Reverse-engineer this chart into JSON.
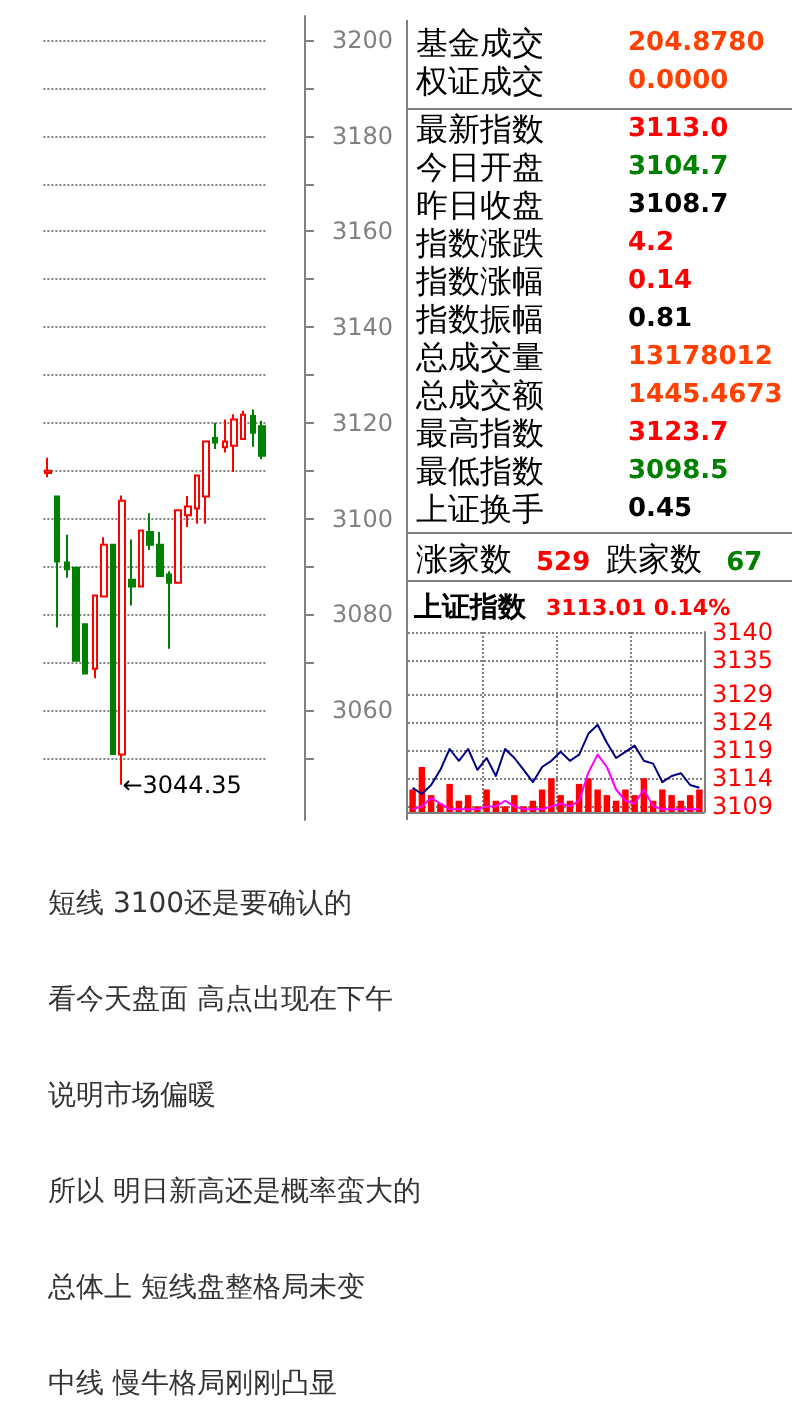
{
  "chart_data": [
    {
      "type": "candlestick",
      "categories": [
        null,
        null,
        null,
        null,
        null,
        null,
        null,
        null,
        null,
        null,
        null,
        null,
        null,
        null,
        null,
        null,
        null,
        null,
        null,
        null,
        null,
        null,
        null,
        null
      ],
      "ohlc": [
        [
          3109.5,
          3112.7,
          3108.6,
          3110
        ],
        [
          3104.6,
          3104.6,
          3077.2,
          3091.0
        ],
        [
          3090.8,
          3096.6,
          3087.6,
          3089.4
        ],
        [
          3089.7,
          3089.7,
          3070.3,
          3070.3
        ],
        [
          3077.9,
          3077.9,
          3067.6,
          3067.6
        ],
        [
          3068.6,
          3084.1,
          3066.6,
          3083.9
        ],
        [
          3083.7,
          3096.1,
          3083.7,
          3094.5
        ],
        [
          3094.5,
          3094.5,
          3050.8,
          3050.8
        ],
        [
          3050.7,
          3104.8,
          3044.35,
          3103.7
        ],
        [
          3087.2,
          3095.6,
          3081.8,
          3085.8
        ],
        [
          3085.8,
          3097.5,
          3085.8,
          3097.5
        ],
        [
          3097.2,
          3101.1,
          3093.4,
          3094.5
        ],
        [
          3094.5,
          3097.2,
          3088.0,
          3088.0
        ],
        [
          3088.3,
          3089.0,
          3072.8,
          3086.6
        ],
        [
          3086.6,
          3101.7,
          3086.6,
          3101.7
        ],
        [
          3100.7,
          3104.7,
          3098.2,
          3102.5
        ],
        [
          3102.1,
          3109.0,
          3098.9,
          3109.0
        ],
        [
          3104.6,
          3116.1,
          3098.9,
          3116.1
        ],
        [
          3116.8,
          3120.0,
          3114.5,
          3115.9
        ],
        [
          3114.9,
          3120.7,
          3113.8,
          3116.1
        ],
        [
          3115.2,
          3121.8,
          3109.7,
          3120.7
        ],
        [
          3116.6,
          3122.5,
          3116.6,
          3121.7
        ],
        [
          3121.4,
          3122.8,
          3115.0,
          3117.9
        ],
        [
          3119.3,
          3120.4,
          3112.4,
          3113.1
        ]
      ],
      "colors": [
        "#ff0000",
        "#008000",
        "#008000",
        "#008000",
        "#008000",
        "#ff0000",
        "#ff0000",
        "#008000",
        "#ff0000",
        "#008000",
        "#ff0000",
        "#008000",
        "#008000",
        "#008000",
        "#ff0000",
        "#ff0000",
        "#ff0000",
        "#ff0000",
        "#008000",
        "#ff0000",
        "#ff0000",
        "#ff0000",
        "#008000",
        "#008000"
      ],
      "ylim": [
        3037,
        3205
      ],
      "yticks": [
        {
          "value": 3050,
          "label": null
        },
        3060,
        {
          "value": 3070,
          "label": null
        },
        3080,
        {
          "value": 3090,
          "label": null
        },
        3100,
        {
          "value": 3110,
          "label": null
        },
        3120,
        {
          "value": 3130,
          "label": null
        },
        3140,
        {
          "value": 3150,
          "label": null
        },
        3160,
        {
          "value": 3170,
          "label": null
        },
        3180,
        {
          "value": 3190,
          "label": null
        },
        3200
      ],
      "grid": "y",
      "annotations": [
        "←3044.35",
        "短线 3100还是要确认的",
        "看今天盘面 高点出现在下午",
        "说明市场偏暖",
        "所以 明日新高还是概率蛮大的",
        "总体上 短线盘整格局未变",
        "中线 慢牛格局刚刚凸显"
      ]
    },
    {
      "type": "other",
      "categories": [
        "基金成交",
        "权证成交",
        "最新指数",
        "今日开盘",
        "昨日收盘",
        "指数涨跌",
        "指数涨幅",
        "指数振幅",
        "总成交量",
        "总成交额",
        "最高指数",
        "最低指数",
        "上证换手",
        "涨家数",
        "跌家数"
      ],
      "value_labels": [
        "204.8780",
        "0.0000",
        "3113.0",
        "3104.7",
        "3108.7",
        "4.2",
        "0.14",
        "0.81",
        "13178012",
        "1445.4673",
        "3123.7",
        "3098.5",
        "0.45",
        "529",
        "67"
      ],
      "colors": [
        "#ff4000",
        "#ff4000",
        "#ff0000",
        "#008000",
        "#000000",
        "#ff0000",
        "#ff0000",
        "#000000",
        "#ff4000",
        "#ff4000",
        "#ff0000",
        "#008000",
        "#000000",
        "#ff0000",
        "#008000"
      ]
    },
    {
      "type": "line",
      "title": "上证指数",
      "subtitle": "3113.01 0.14%",
      "categories": [
        null,
        null,
        null,
        null,
        null,
        null,
        null,
        null,
        null,
        null,
        null,
        null,
        null,
        null,
        null,
        null,
        null,
        null,
        null,
        null,
        null,
        null,
        null,
        null,
        null,
        null,
        null,
        null,
        null,
        null,
        null,
        null
      ],
      "ylim": [
        3108,
        3140
      ],
      "yticks": [
        3140,
        3135,
        3129,
        3124,
        3119,
        3114,
        3109
      ],
      "grid": true,
      "series": [
        {
          "type": "bar",
          "color": "#ff0000",
          "values": [
            3112,
            3116,
            3111,
            3109.5,
            3113,
            3110,
            3111,
            3109,
            3112,
            3110,
            3109,
            3111,
            3109,
            3110,
            3112,
            3114,
            3111,
            3110,
            3113,
            3114,
            3112,
            3111,
            3110,
            3112,
            3111,
            3114,
            3110,
            3112,
            3111,
            3110,
            3111,
            3112
          ]
        },
        {
          "color": "#ff00ff",
          "values": [
            3108.5,
            3109,
            3110.5,
            3109.5,
            3108.5,
            3108.5,
            3108.5,
            3108.5,
            3109,
            3109,
            3110,
            3109,
            3108.5,
            3108.5,
            3108.5,
            3109,
            3109.5,
            3109,
            3110,
            3115,
            3118.2,
            3116,
            3112,
            3110,
            3109.5,
            3112,
            3109,
            3108.5,
            3108.5,
            3108.5,
            3108.5,
            3108.5
          ]
        },
        {
          "color": "#000080",
          "values": [
            3112.3,
            3111.2,
            3112.8,
            3115.5,
            3119.2,
            3117.1,
            3119.2,
            3115.5,
            3117.6,
            3114.4,
            3119.2,
            3117.6,
            3115.5,
            3113.3,
            3116.0,
            3117.1,
            3118.7,
            3117.1,
            3118.2,
            3121.9,
            3123.5,
            3120.3,
            3117.6,
            3118.7,
            3119.8,
            3117.1,
            3116.6,
            3113.3,
            3114.4,
            3114.9,
            3112.8,
            3112.3
          ]
        }
      ]
    }
  ]
}
